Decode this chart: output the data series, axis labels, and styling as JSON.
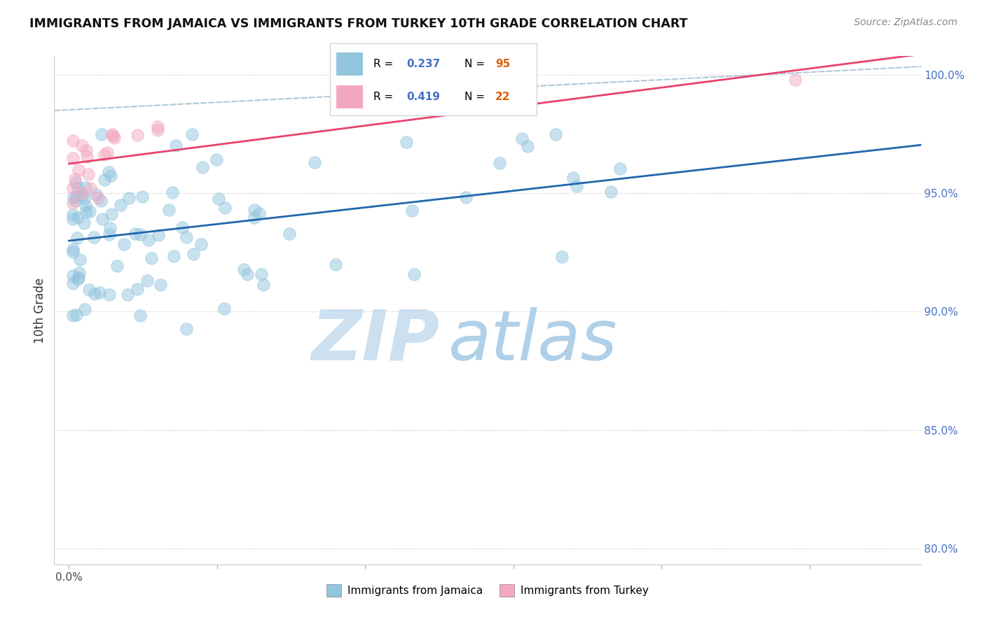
{
  "title": "IMMIGRANTS FROM JAMAICA VS IMMIGRANTS FROM TURKEY 10TH GRADE CORRELATION CHART",
  "source": "Source: ZipAtlas.com",
  "ylabel": "10th Grade",
  "legend_labels": [
    "Immigrants from Jamaica",
    "Immigrants from Turkey"
  ],
  "r_jamaica": 0.237,
  "n_jamaica": 95,
  "r_turkey": 0.419,
  "n_turkey": 22,
  "color_jamaica": "#92c5de",
  "color_turkey": "#f4a8c0",
  "color_line_jamaica": "#2166ac",
  "color_line_turkey": "#e8436e",
  "color_dashed": "#b0c8d8",
  "color_ytick": "#4472c4",
  "color_title": "#111111",
  "color_source": "#888888",
  "color_r_value": "#4472c4",
  "color_n_value": "#e05c00",
  "watermark_zip_color": "#cce0f0",
  "watermark_atlas_color": "#b0d0e8",
  "seed_jamaica": 42,
  "seed_turkey": 99,
  "xlim_min": -0.0002,
  "xlim_max": 0.0115,
  "ylim_min": 0.793,
  "ylim_max": 1.008
}
